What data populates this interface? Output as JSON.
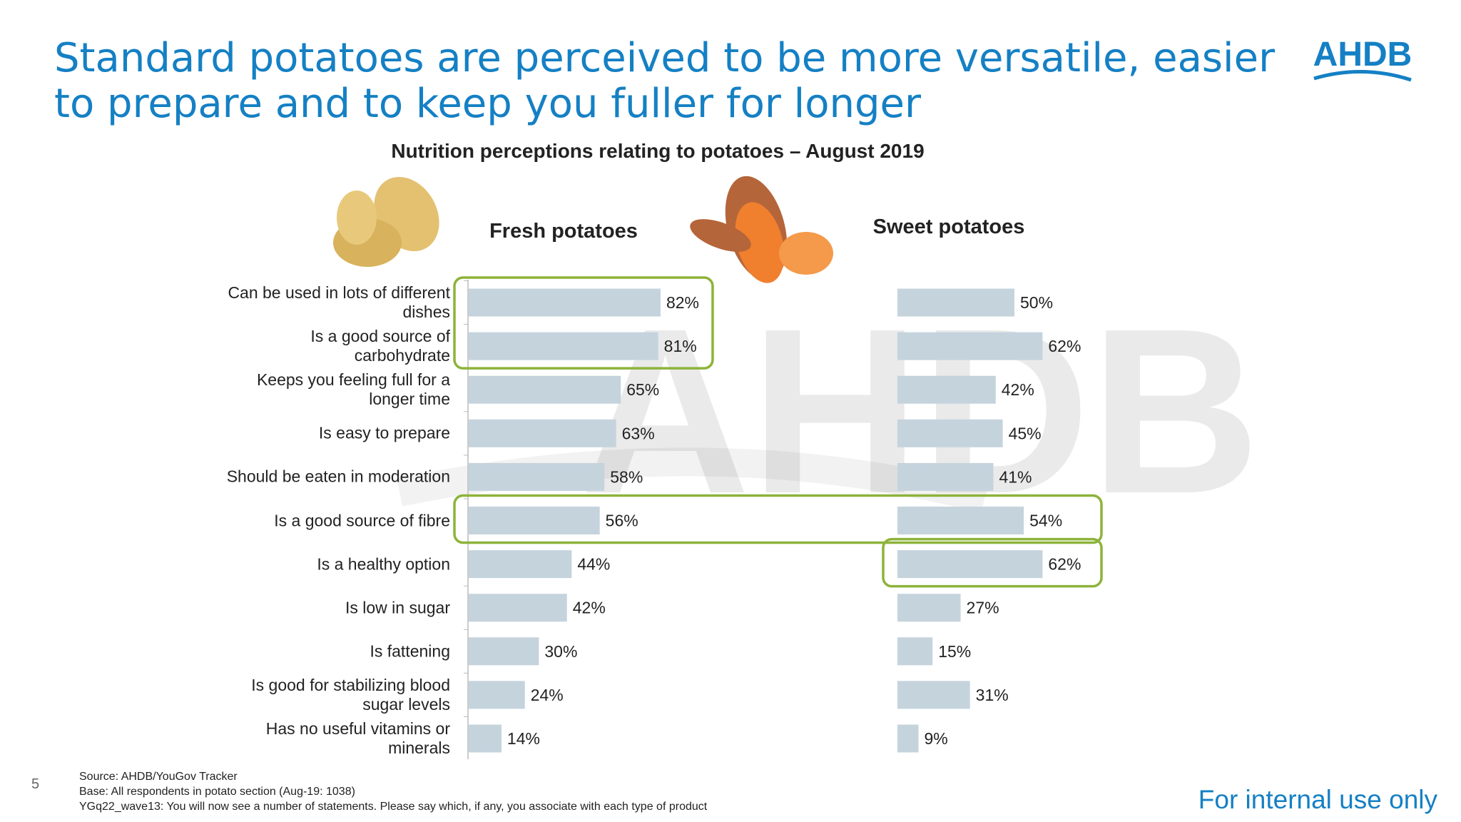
{
  "slide": {
    "title": "Standard potatoes are perceived to be more versatile, easier to prepare and to keep you fuller for longer",
    "logo": "AHDB",
    "page_number": "5",
    "sources": [
      "Source: AHDB/YouGov Tracker",
      "Base: All respondents in potato section (Aug-19: 1038)",
      "YGq22_wave13: You will now see a number of statements.  Please say which, if any, you associate with each type of product"
    ],
    "footer": "For internal use only"
  },
  "chart_data": {
    "type": "bar",
    "orientation": "horizontal",
    "title": "Nutrition perceptions relating to potatoes – August 2019",
    "categories": [
      "Can be used in lots of different dishes",
      "Is a good source of carbohydrate",
      "Keeps you feeling full for a longer time",
      "Is easy to prepare",
      "Should be eaten in moderation",
      "Is a good source of fibre",
      "Is a healthy option",
      "Is low in sugar",
      "Is fattening",
      "Is good for stabilizing blood sugar levels",
      "Has no useful vitamins or minerals"
    ],
    "series": [
      {
        "name": "Fresh potatoes",
        "color": "#c5d3dd",
        "values": [
          82,
          81,
          65,
          63,
          58,
          56,
          44,
          42,
          30,
          24,
          14
        ],
        "value_labels": [
          "82%",
          "81%",
          "65%",
          "63%",
          "58%",
          "56%",
          "44%",
          "42%",
          "30%",
          "24%",
          "14%"
        ]
      },
      {
        "name": "Sweet potatoes",
        "color": "#c5d3dd",
        "values": [
          50,
          62,
          42,
          45,
          41,
          54,
          62,
          27,
          15,
          31,
          9
        ],
        "value_labels": [
          "50%",
          "62%",
          "42%",
          "45%",
          "41%",
          "54%",
          "62%",
          "27%",
          "15%",
          "31%",
          "9%"
        ]
      }
    ],
    "highlight_color": "#8db33a",
    "highlights": [
      {
        "series": [
          0
        ],
        "categories": [
          0,
          1
        ]
      },
      {
        "series": [
          0,
          1
        ],
        "categories": [
          5
        ]
      },
      {
        "series": [
          1
        ],
        "categories": [
          6
        ]
      }
    ]
  }
}
